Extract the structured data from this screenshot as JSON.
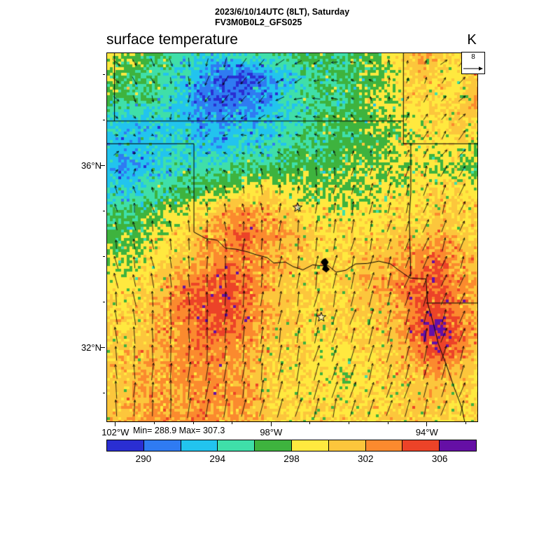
{
  "header": {
    "title_line1": "2023/6/10/14UTC (8LT), Saturday",
    "title_line2": "FV3M0B0L2_GFS025",
    "plot_title": "surface temperature",
    "units_label": "K",
    "vector_ref_value": "8"
  },
  "stats": {
    "min_max_label": "Min= 288.9 Max= 307.3"
  },
  "chart_data": {
    "type": "heatmap",
    "title": "surface temperature",
    "units": "K",
    "time_label": "2023/6/10/14UTC (8LT), Saturday",
    "model_label": "FV3M0B0L2_GFS025",
    "min": 288.9,
    "max": 307.3,
    "vector_reference": 8,
    "lon_range_degW": [
      102.23,
      92.72
    ],
    "lat_range_degN": [
      30.4,
      38.49
    ],
    "axes": {
      "xticks": [
        {
          "degW": 102,
          "label": "102°W"
        },
        {
          "degW": 98,
          "label": "98°W"
        },
        {
          "degW": 94,
          "label": "94°W"
        }
      ],
      "xminor_degW": [
        101,
        100,
        99,
        97,
        96,
        95,
        93
      ],
      "yticks": [
        {
          "degN": 36,
          "label": "36°N"
        },
        {
          "degN": 32,
          "label": "32°N"
        }
      ],
      "yminor_degN": [
        38,
        37,
        35,
        34,
        33,
        31
      ]
    },
    "colorbar": {
      "levels": [
        288,
        290,
        292,
        294,
        296,
        298,
        300,
        302,
        304,
        306,
        308
      ],
      "colors": [
        "#2a2ed2",
        "#2f7bf2",
        "#22c4ee",
        "#3fdfa9",
        "#3eb33e",
        "#ffe93f",
        "#fcc63c",
        "#fb8a2e",
        "#ec4328",
        "#650fa5"
      ],
      "tick_labels": [
        "290",
        "294",
        "298",
        "302",
        "306"
      ],
      "tick_positions": [
        1,
        3,
        5,
        7,
        9
      ]
    },
    "temperature_grid_K": {
      "cols": 20,
      "rows": 17,
      "lon_order": "west_to_east",
      "lat_order": "north_to_south",
      "values": [
        [
          300,
          298,
          297,
          296,
          295,
          294,
          294,
          295,
          296,
          296,
          297,
          297,
          296,
          297,
          298,
          300,
          302,
          301,
          299,
          300
        ],
        [
          298,
          297,
          296,
          295,
          294,
          292,
          290,
          290,
          291,
          293,
          295,
          296,
          296,
          297,
          297,
          299,
          301,
          300,
          299,
          301
        ],
        [
          297,
          296,
          296,
          295,
          293,
          291,
          290,
          291,
          292,
          294,
          295,
          296,
          296,
          297,
          298,
          299,
          300,
          299,
          300,
          302
        ],
        [
          294,
          293,
          293,
          294,
          293,
          292,
          292,
          293,
          293,
          294,
          295,
          296,
          297,
          297,
          298,
          298,
          299,
          300,
          301,
          300
        ],
        [
          293,
          293,
          293,
          294,
          294,
          293,
          293,
          294,
          294,
          295,
          296,
          296,
          297,
          297,
          297,
          299,
          299,
          299,
          300,
          298
        ],
        [
          293,
          292,
          293,
          294,
          295,
          295,
          295,
          296,
          296,
          296,
          297,
          297,
          297,
          298,
          298,
          298,
          299,
          298,
          298,
          297
        ],
        [
          294,
          294,
          295,
          296,
          296,
          297,
          298,
          299,
          300,
          299,
          298,
          298,
          298,
          298,
          299,
          299,
          299,
          300,
          300,
          299
        ],
        [
          296,
          296,
          297,
          298,
          299,
          300,
          302,
          303,
          302,
          301,
          300,
          299,
          299,
          299,
          299,
          300,
          300,
          301,
          300,
          300
        ],
        [
          297,
          297,
          298,
          299,
          300,
          302,
          303,
          304,
          303,
          302,
          301,
          300,
          300,
          300,
          300,
          301,
          301,
          302,
          301,
          300
        ],
        [
          298,
          298,
          299,
          300,
          301,
          302,
          303,
          303,
          302,
          301,
          301,
          300,
          300,
          301,
          301,
          302,
          303,
          304,
          302,
          301
        ],
        [
          299,
          299,
          300,
          301,
          303,
          304,
          305,
          304,
          302,
          301,
          300,
          300,
          300,
          301,
          302,
          303,
          304,
          304,
          303,
          302
        ],
        [
          300,
          300,
          301,
          302,
          304,
          305,
          305,
          304,
          302,
          301,
          300,
          300,
          300,
          301,
          301,
          302,
          304,
          305,
          303,
          302
        ],
        [
          300,
          300,
          301,
          302,
          303,
          304,
          304,
          303,
          302,
          301,
          300,
          300,
          300,
          300,
          301,
          302,
          305,
          307,
          304,
          302
        ],
        [
          300,
          301,
          301,
          302,
          303,
          303,
          303,
          302,
          301,
          300,
          300,
          299,
          299,
          300,
          300,
          301,
          303,
          305,
          303,
          301
        ],
        [
          300,
          301,
          302,
          302,
          303,
          303,
          302,
          302,
          301,
          300,
          300,
          299,
          299,
          299,
          300,
          301,
          301,
          302,
          301,
          300
        ],
        [
          301,
          301,
          302,
          302,
          302,
          303,
          303,
          302,
          301,
          300,
          300,
          300,
          299,
          300,
          300,
          300,
          301,
          301,
          300,
          300
        ],
        [
          301,
          302,
          302,
          303,
          303,
          303,
          302,
          302,
          301,
          300,
          300,
          300,
          300,
          300,
          300,
          301,
          301,
          300,
          300,
          300
        ]
      ]
    },
    "wind_grid_ms": {
      "u": [
        [
          3,
          2,
          1,
          -1,
          -3,
          -3,
          -2,
          0,
          2,
          3
        ],
        [
          2,
          1,
          -1,
          -3,
          -3,
          -3,
          -2,
          0,
          2,
          3
        ],
        [
          2,
          1,
          -1,
          -2,
          -2,
          -1,
          0,
          1,
          2,
          3
        ],
        [
          0,
          -1,
          -1,
          -1,
          0,
          0,
          1,
          1,
          2,
          2
        ],
        [
          -1,
          -1,
          -1,
          0,
          0,
          1,
          1,
          2,
          2,
          2
        ],
        [
          -1,
          -1,
          0,
          0,
          1,
          1,
          2,
          2,
          2,
          2
        ],
        [
          -1,
          0,
          0,
          1,
          1,
          2,
          2,
          2,
          2,
          2
        ],
        [
          0,
          0,
          1,
          1,
          1,
          2,
          2,
          2,
          2,
          2
        ],
        [
          0,
          1,
          1,
          1,
          2,
          2,
          2,
          2,
          2,
          2
        ]
      ],
      "v": [
        [
          -3,
          -3,
          -4,
          -4,
          -3,
          -2,
          0,
          2,
          2,
          3
        ],
        [
          -2,
          -3,
          -3,
          -3,
          -2,
          0,
          1,
          2,
          3,
          3
        ],
        [
          1,
          0,
          0,
          0,
          1,
          2,
          2,
          3,
          3,
          4
        ],
        [
          3,
          3,
          3,
          3,
          4,
          4,
          5,
          5,
          5,
          5
        ],
        [
          4,
          5,
          5,
          5,
          5,
          5,
          6,
          5,
          5,
          5
        ],
        [
          6,
          6,
          6,
          6,
          6,
          7,
          7,
          6,
          6,
          6
        ],
        [
          7,
          7,
          7,
          7,
          7,
          7,
          7,
          7,
          6,
          6
        ],
        [
          7,
          7,
          8,
          8,
          8,
          8,
          7,
          7,
          7,
          6
        ],
        [
          7,
          8,
          8,
          8,
          8,
          8,
          8,
          7,
          7,
          7
        ]
      ]
    },
    "borders_lonlat": [
      [
        [
          102.04,
          38.49
        ],
        [
          102.04,
          37.0
        ]
      ],
      [
        [
          102.23,
          37.0
        ],
        [
          94.62,
          37.0
        ]
      ],
      [
        [
          94.62,
          38.49
        ],
        [
          94.62,
          36.5
        ],
        [
          94.43,
          36.5
        ],
        [
          94.43,
          35.4
        ],
        [
          94.47,
          34.9
        ],
        [
          94.45,
          34.2
        ],
        [
          94.43,
          33.6
        ]
      ],
      [
        [
          94.62,
          36.5
        ],
        [
          92.72,
          36.5
        ]
      ],
      [
        [
          94.04,
          33.0
        ],
        [
          92.72,
          33.0
        ]
      ],
      [
        [
          102.23,
          36.5
        ],
        [
          100.0,
          36.5
        ]
      ],
      [
        [
          100.0,
          36.5
        ],
        [
          100.0,
          34.56
        ]
      ],
      [
        [
          100.0,
          34.56
        ],
        [
          99.7,
          34.42
        ],
        [
          99.4,
          34.38
        ],
        [
          99.2,
          34.21
        ],
        [
          98.9,
          34.18
        ],
        [
          98.6,
          34.12
        ],
        [
          98.4,
          34.06
        ],
        [
          98.12,
          34.0
        ],
        [
          97.95,
          33.88
        ],
        [
          97.65,
          33.9
        ],
        [
          97.45,
          33.8
        ],
        [
          97.2,
          33.73
        ],
        [
          96.95,
          33.84
        ],
        [
          96.75,
          33.82
        ],
        [
          96.55,
          33.82
        ],
        [
          96.35,
          33.68
        ],
        [
          96.1,
          33.72
        ],
        [
          95.85,
          33.86
        ],
        [
          95.55,
          33.87
        ],
        [
          95.25,
          33.92
        ],
        [
          94.95,
          33.86
        ],
        [
          94.75,
          33.73
        ],
        [
          94.45,
          33.55
        ],
        [
          94.04,
          33.53
        ]
      ],
      [
        [
          94.04,
          33.53
        ],
        [
          94.0,
          33.0
        ],
        [
          93.85,
          32.55
        ],
        [
          93.72,
          32.1
        ],
        [
          93.5,
          31.6
        ],
        [
          93.32,
          31.15
        ],
        [
          93.12,
          30.7
        ],
        [
          93.05,
          30.4
        ]
      ]
    ],
    "markers": {
      "stars_lonlat": [
        [
          97.34,
          35.1
        ],
        [
          96.73,
          32.69
        ]
      ],
      "lake_outline_lonlat": [
        [
          96.62,
          33.98
        ],
        [
          96.55,
          33.9
        ],
        [
          96.6,
          33.82
        ],
        [
          96.52,
          33.74
        ],
        [
          96.6,
          33.68
        ],
        [
          96.7,
          33.74
        ],
        [
          96.66,
          33.82
        ],
        [
          96.74,
          33.9
        ],
        [
          96.68,
          33.96
        ]
      ]
    }
  }
}
